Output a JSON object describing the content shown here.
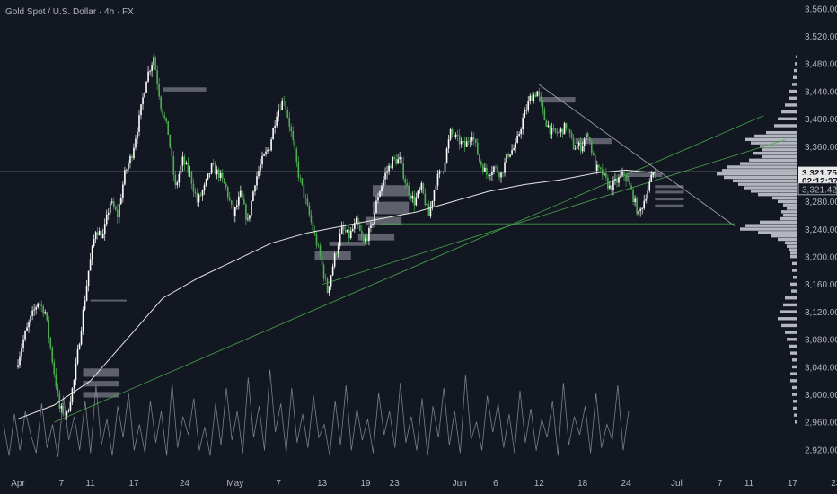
{
  "header": {
    "symbol_title": "Gold Spot / U.S. Dollar · 4h · FX"
  },
  "colors": {
    "background": "#131722",
    "candle_up": "#ffffff",
    "candle_down": "#4caf50",
    "trendline": "#4caf50",
    "moving_average": "#e6e6e6",
    "volume_profile": "#d1d4dc",
    "order_block": "#787b86",
    "oscillator": "#9598a1",
    "axis_text": "#b2b5be"
  },
  "chart_data": {
    "type": "candlestick",
    "title": "Gold Spot / U.S. Dollar · 4h · FX",
    "ylim": [
      2895,
      3565
    ],
    "y_ticks": [
      "3,560.00",
      "3,520.00",
      "3,480.00",
      "3,440.00",
      "3,400.00",
      "3,360.00",
      "3,320.00",
      "3,280.00",
      "3,240.00",
      "3,200.00",
      "3,160.00",
      "3,120.00",
      "3,080.00",
      "3,040.00",
      "3,000.00",
      "2,960.00",
      "2,920.00"
    ],
    "y_tick_values": [
      3560,
      3520,
      3480,
      3440,
      3400,
      3360,
      3320,
      3280,
      3240,
      3200,
      3160,
      3120,
      3080,
      3040,
      3000,
      2960,
      2920
    ],
    "x_ticks": [
      "Apr",
      "7",
      "11",
      "17",
      "24",
      "May",
      "7",
      "13",
      "19",
      "23",
      "Jun",
      "6",
      "12",
      "18",
      "24",
      "Jul",
      "7",
      "11",
      "17",
      "23"
    ],
    "x_tick_days": [
      0,
      6,
      10,
      16,
      23,
      30,
      36,
      42,
      48,
      52,
      61,
      66,
      72,
      78,
      84,
      91,
      97,
      101,
      107,
      113
    ],
    "x_unit": "days since Apr 1",
    "price_markers": [
      {
        "label": "3,321.75",
        "value": 3321.75,
        "style": "solid"
      },
      {
        "label": "02:12:37",
        "value": 3310,
        "style": "countdown"
      },
      {
        "label": "3,321.42",
        "value": 3298,
        "style": "outline"
      }
    ],
    "last_price": 3321.75,
    "price_path": [
      [
        0,
        3040
      ],
      [
        1,
        3080
      ],
      [
        2,
        3110
      ],
      [
        3,
        3135
      ],
      [
        4,
        3120
      ],
      [
        5,
        3050
      ],
      [
        6,
        2980
      ],
      [
        7,
        2970
      ],
      [
        8,
        3020
      ],
      [
        9,
        3100
      ],
      [
        10,
        3180
      ],
      [
        11,
        3240
      ],
      [
        12,
        3230
      ],
      [
        13,
        3280
      ],
      [
        14,
        3260
      ],
      [
        15,
        3320
      ],
      [
        16,
        3350
      ],
      [
        17,
        3400
      ],
      [
        18,
        3460
      ],
      [
        19,
        3490
      ],
      [
        20,
        3420
      ],
      [
        21,
        3380
      ],
      [
        22,
        3300
      ],
      [
        23,
        3340
      ],
      [
        24,
        3320
      ],
      [
        25,
        3280
      ],
      [
        26,
        3300
      ],
      [
        27,
        3330
      ],
      [
        28,
        3320
      ],
      [
        29,
        3300
      ],
      [
        30,
        3260
      ],
      [
        31,
        3290
      ],
      [
        32,
        3250
      ],
      [
        33,
        3310
      ],
      [
        34,
        3340
      ],
      [
        35,
        3360
      ],
      [
        36,
        3410
      ],
      [
        37,
        3430
      ],
      [
        38,
        3380
      ],
      [
        39,
        3320
      ],
      [
        40,
        3280
      ],
      [
        41,
        3240
      ],
      [
        42,
        3200
      ],
      [
        43,
        3150
      ],
      [
        44,
        3200
      ],
      [
        45,
        3240
      ],
      [
        46,
        3230
      ],
      [
        47,
        3250
      ],
      [
        48,
        3220
      ],
      [
        49,
        3240
      ],
      [
        50,
        3290
      ],
      [
        51,
        3320
      ],
      [
        52,
        3340
      ],
      [
        53,
        3340
      ],
      [
        54,
        3300
      ],
      [
        55,
        3280
      ],
      [
        56,
        3300
      ],
      [
        57,
        3260
      ],
      [
        58,
        3310
      ],
      [
        59,
        3330
      ],
      [
        60,
        3380
      ],
      [
        61,
        3370
      ],
      [
        62,
        3360
      ],
      [
        63,
        3380
      ],
      [
        64,
        3340
      ],
      [
        65,
        3320
      ],
      [
        66,
        3330
      ],
      [
        67,
        3320
      ],
      [
        68,
        3350
      ],
      [
        69,
        3360
      ],
      [
        70,
        3400
      ],
      [
        71,
        3430
      ],
      [
        72,
        3440
      ],
      [
        73,
        3400
      ],
      [
        74,
        3380
      ],
      [
        75,
        3380
      ],
      [
        76,
        3390
      ],
      [
        77,
        3360
      ],
      [
        78,
        3360
      ],
      [
        79,
        3380
      ],
      [
        80,
        3330
      ],
      [
        81,
        3320
      ],
      [
        82,
        3300
      ],
      [
        83,
        3310
      ],
      [
        84,
        3320
      ],
      [
        85,
        3295
      ],
      [
        86,
        3260
      ],
      [
        87,
        3290
      ],
      [
        88,
        3321
      ]
    ],
    "moving_average": [
      [
        0,
        2965
      ],
      [
        5,
        2985
      ],
      [
        10,
        3020
      ],
      [
        15,
        3080
      ],
      [
        20,
        3140
      ],
      [
        25,
        3170
      ],
      [
        30,
        3195
      ],
      [
        35,
        3220
      ],
      [
        40,
        3235
      ],
      [
        45,
        3245
      ],
      [
        50,
        3255
      ],
      [
        55,
        3265
      ],
      [
        60,
        3280
      ],
      [
        65,
        3295
      ],
      [
        70,
        3305
      ],
      [
        75,
        3312
      ],
      [
        80,
        3322
      ],
      [
        84,
        3326
      ],
      [
        88,
        3322
      ]
    ],
    "trendlines": [
      {
        "name": "ascending-support",
        "from": [
          5,
          2960
        ],
        "to": [
          103,
          3405
        ]
      },
      {
        "name": "ascending-support-2",
        "from": [
          42,
          3160
        ],
        "to": [
          106,
          3370
        ]
      },
      {
        "name": "descending-resistance",
        "from": [
          72,
          3450
        ],
        "to": [
          99,
          3245
        ]
      },
      {
        "name": "horizontal-support",
        "from": [
          50,
          3248
        ],
        "to": [
          99,
          3248
        ]
      },
      {
        "name": "price-level",
        "from": [
          0,
          3324
        ],
        "to": [
          104,
          3324
        ]
      }
    ],
    "order_blocks": [
      {
        "from": [
          20,
          3446
        ],
        "to": [
          26,
          3440
        ]
      },
      {
        "from": [
          10,
          3138
        ],
        "to": [
          15,
          3136
        ]
      },
      {
        "from": [
          9,
          3038
        ],
        "to": [
          14,
          3026
        ]
      },
      {
        "from": [
          9,
          3020
        ],
        "to": [
          14,
          3012
        ]
      },
      {
        "from": [
          9,
          3004
        ],
        "to": [
          14,
          2996
        ]
      },
      {
        "from": [
          49,
          3304
        ],
        "to": [
          54,
          3288
        ]
      },
      {
        "from": [
          49,
          3280
        ],
        "to": [
          54,
          3262
        ]
      },
      {
        "from": [
          48,
          3258
        ],
        "to": [
          53,
          3246
        ]
      },
      {
        "from": [
          47,
          3234
        ],
        "to": [
          52,
          3224
        ]
      },
      {
        "from": [
          43,
          3222
        ],
        "to": [
          48,
          3216
        ]
      },
      {
        "from": [
          41,
          3208
        ],
        "to": [
          46,
          3196
        ]
      },
      {
        "from": [
          72,
          3432
        ],
        "to": [
          77,
          3424
        ]
      },
      {
        "from": [
          77,
          3372
        ],
        "to": [
          82,
          3364
        ]
      },
      {
        "from": [
          84,
          3322
        ],
        "to": [
          89,
          3316
        ]
      },
      {
        "from": [
          88,
          3304
        ],
        "to": [
          92,
          3300
        ]
      },
      {
        "from": [
          88,
          3296
        ],
        "to": [
          92,
          3292
        ]
      },
      {
        "from": [
          88,
          3286
        ],
        "to": [
          92,
          3282
        ]
      },
      {
        "from": [
          88,
          3276
        ],
        "to": [
          92,
          3272
        ]
      }
    ],
    "volume_profile": [
      [
        3490,
        2
      ],
      [
        3480,
        3
      ],
      [
        3470,
        4
      ],
      [
        3460,
        5
      ],
      [
        3450,
        6
      ],
      [
        3440,
        9
      ],
      [
        3430,
        10
      ],
      [
        3420,
        14
      ],
      [
        3410,
        18
      ],
      [
        3400,
        22
      ],
      [
        3390,
        26
      ],
      [
        3380,
        35
      ],
      [
        3375,
        48
      ],
      [
        3370,
        58
      ],
      [
        3365,
        52
      ],
      [
        3360,
        42
      ],
      [
        3355,
        40
      ],
      [
        3350,
        50
      ],
      [
        3345,
        40
      ],
      [
        3340,
        54
      ],
      [
        3335,
        64
      ],
      [
        3330,
        78
      ],
      [
        3325,
        84
      ],
      [
        3320,
        90
      ],
      [
        3315,
        82
      ],
      [
        3310,
        72
      ],
      [
        3305,
        66
      ],
      [
        3300,
        60
      ],
      [
        3295,
        52
      ],
      [
        3290,
        44
      ],
      [
        3285,
        28
      ],
      [
        3280,
        22
      ],
      [
        3275,
        16
      ],
      [
        3270,
        12
      ],
      [
        3265,
        18
      ],
      [
        3260,
        16
      ],
      [
        3255,
        20
      ],
      [
        3250,
        42
      ],
      [
        3245,
        58
      ],
      [
        3240,
        64
      ],
      [
        3235,
        44
      ],
      [
        3230,
        30
      ],
      [
        3225,
        22
      ],
      [
        3220,
        14
      ],
      [
        3215,
        12
      ],
      [
        3210,
        10
      ],
      [
        3205,
        8
      ],
      [
        3200,
        8
      ],
      [
        3190,
        6
      ],
      [
        3180,
        6
      ],
      [
        3170,
        5
      ],
      [
        3160,
        8
      ],
      [
        3150,
        7
      ],
      [
        3140,
        14
      ],
      [
        3130,
        16
      ],
      [
        3120,
        20
      ],
      [
        3110,
        22
      ],
      [
        3100,
        18
      ],
      [
        3090,
        14
      ],
      [
        3080,
        12
      ],
      [
        3070,
        10
      ],
      [
        3060,
        8
      ],
      [
        3050,
        6
      ],
      [
        3040,
        6
      ],
      [
        3030,
        8
      ],
      [
        3020,
        8
      ],
      [
        3010,
        6
      ],
      [
        3000,
        6
      ],
      [
        2990,
        5
      ],
      [
        2980,
        5
      ],
      [
        2970,
        4
      ],
      [
        2960,
        3
      ]
    ],
    "oscillator": [
      30,
      6,
      38,
      10,
      40,
      22,
      8,
      46,
      12,
      30,
      5,
      52,
      18,
      36,
      10,
      48,
      8,
      60,
      14,
      34,
      6,
      44,
      20,
      54,
      10,
      30,
      8,
      48,
      16,
      40,
      6,
      62,
      12,
      36,
      22,
      50,
      10,
      28,
      6,
      46,
      14,
      58,
      18,
      40,
      8,
      66,
      20,
      44,
      10,
      72,
      24,
      46,
      8,
      58,
      16,
      38,
      12,
      52,
      20,
      30,
      6,
      48,
      14,
      60,
      10,
      42,
      18,
      34,
      8,
      54,
      22,
      40,
      12,
      62,
      16,
      36,
      10,
      50,
      6,
      44,
      20,
      58,
      14,
      40,
      8,
      68,
      18,
      32,
      10,
      52,
      24,
      46,
      12,
      38,
      8,
      56,
      16,
      42,
      10,
      34,
      20,
      48,
      6,
      62,
      14,
      36,
      22,
      44,
      8,
      54,
      12,
      30,
      18,
      60,
      10,
      40
    ]
  }
}
